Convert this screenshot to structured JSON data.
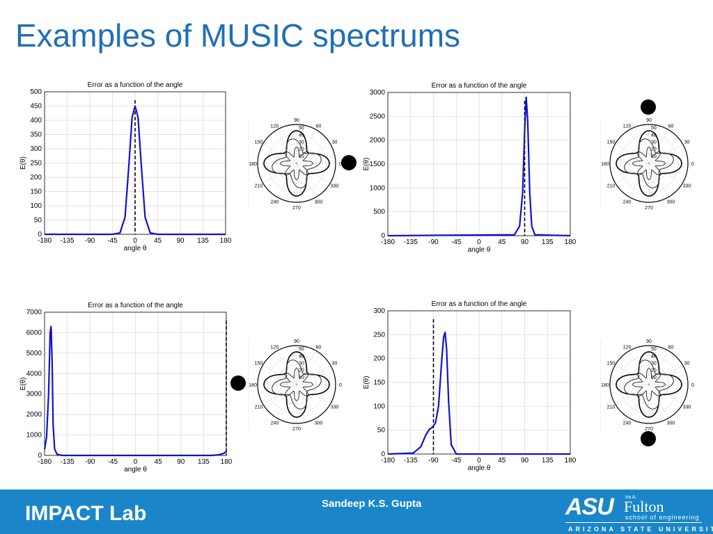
{
  "slide": {
    "title": "Examples of MUSIC spectrums"
  },
  "footer": {
    "lab": "IMPACT Lab",
    "author": "Sandeep K.S. Gupta",
    "logo": {
      "asu": "ASU",
      "ira": "Ira A.",
      "fulton": "Fulton",
      "school": "school of engineering",
      "university": "ARIZONA STATE UNIVERSITY"
    }
  },
  "polar_labels": {
    "angles": [
      "0",
      "30",
      "60",
      "90",
      "120",
      "150",
      "180",
      "210",
      "240",
      "270",
      "300",
      "330"
    ],
    "radii": [
      "10",
      "20",
      "30",
      "40",
      "50"
    ]
  },
  "chart_data": [
    {
      "type": "line",
      "title": "Error as a function of the angle",
      "xlabel": "angle θ",
      "ylabel": "E(θ)",
      "xlim": [
        -180,
        180
      ],
      "ylim": [
        0,
        500
      ],
      "xticks": [
        -180,
        -135,
        -90,
        -45,
        0,
        45,
        90,
        135,
        180
      ],
      "yticks": [
        0,
        50,
        100,
        150,
        200,
        250,
        300,
        350,
        400,
        450,
        500
      ],
      "grid": true,
      "series": [
        {
          "color": "#1010d0",
          "x": [
            -180,
            -45,
            -30,
            -20,
            -12,
            -6,
            0,
            6,
            12,
            20,
            30,
            45,
            180
          ],
          "y": [
            0,
            0,
            5,
            60,
            250,
            410,
            450,
            410,
            250,
            60,
            5,
            0,
            0
          ]
        }
      ],
      "reference_x": 0
    },
    {
      "type": "line",
      "title": "Error as a function of the angle",
      "xlabel": "angle θ",
      "ylabel": "E(θ)",
      "xlim": [
        -180,
        180
      ],
      "ylim": [
        0,
        3000
      ],
      "xticks": [
        -180,
        -135,
        -90,
        -45,
        0,
        45,
        90,
        135,
        180
      ],
      "yticks": [
        0,
        500,
        1000,
        1500,
        2000,
        2500,
        3000
      ],
      "grid": true,
      "series": [
        {
          "color": "#1010d0",
          "x": [
            -180,
            70,
            80,
            86,
            90,
            93,
            96,
            100,
            104,
            110,
            180
          ],
          "y": [
            0,
            20,
            200,
            900,
            2200,
            2900,
            2400,
            900,
            200,
            20,
            0
          ]
        }
      ],
      "reference_x": 90
    },
    {
      "type": "line",
      "title": "Error as a function of the angle",
      "xlabel": "angle θ",
      "ylabel": "E(θ)",
      "xlim": [
        -180,
        180
      ],
      "ylim": [
        0,
        7000
      ],
      "xticks": [
        -180,
        -135,
        -90,
        -45,
        0,
        45,
        90,
        135,
        180
      ],
      "yticks": [
        0,
        1000,
        2000,
        3000,
        4000,
        5000,
        6000,
        7000
      ],
      "grid": true,
      "series": [
        {
          "color": "#1010d0",
          "x": [
            -180,
            -176,
            -172,
            -169,
            -167,
            -165,
            -163,
            -160,
            -155,
            -145,
            150,
            165,
            175,
            180
          ],
          "y": [
            300,
            900,
            3000,
            6000,
            6300,
            4500,
            1500,
            300,
            50,
            0,
            0,
            30,
            100,
            200
          ]
        }
      ],
      "reference_x": 180
    },
    {
      "type": "line",
      "title": "Error as a function of the angle",
      "xlabel": "angle θ",
      "ylabel": "E(θ)",
      "xlim": [
        -180,
        180
      ],
      "ylim": [
        0,
        300
      ],
      "xticks": [
        -180,
        -135,
        -90,
        -45,
        0,
        45,
        90,
        135,
        180
      ],
      "yticks": [
        0,
        50,
        100,
        150,
        200,
        250,
        300
      ],
      "grid": true,
      "series": [
        {
          "color": "#1010d0",
          "x": [
            -180,
            -130,
            -115,
            -105,
            -98,
            -92,
            -86,
            -80,
            -74,
            -70,
            -67,
            -64,
            -60,
            -55,
            -45,
            180
          ],
          "y": [
            0,
            2,
            15,
            40,
            52,
            56,
            65,
            100,
            190,
            245,
            255,
            220,
            110,
            20,
            0,
            0
          ]
        }
      ],
      "reference_x": -90
    }
  ]
}
